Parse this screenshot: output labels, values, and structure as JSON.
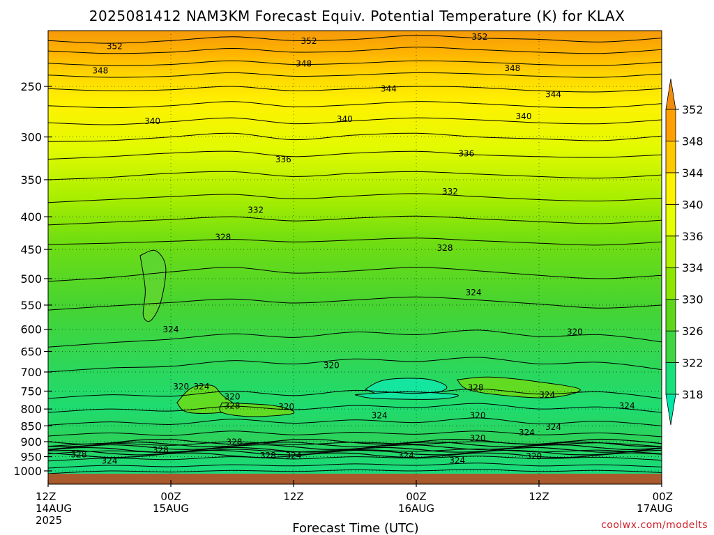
{
  "chart_data": {
    "type": "contour",
    "title": "2025081412 NAM3KM Forecast Equiv. Potential Temperature (K) for KLAX",
    "xlabel": "Forecast Time (UTC)",
    "ylabel": "",
    "credit": "coolwx.com/modelts",
    "y_scale": "log",
    "y_inverted": true,
    "ylim": [
      1030,
      200
    ],
    "y_ticks": [
      250,
      300,
      350,
      400,
      450,
      500,
      550,
      600,
      650,
      700,
      750,
      800,
      850,
      900,
      950,
      1000
    ],
    "x_hours": [
      0,
      12,
      24,
      36,
      48,
      60
    ],
    "x_ticks": [
      {
        "hour": 0,
        "lines": [
          "12Z",
          "14AUG",
          "2025"
        ]
      },
      {
        "hour": 12,
        "lines": [
          "00Z",
          "15AUG"
        ]
      },
      {
        "hour": 24,
        "lines": [
          "12Z"
        ]
      },
      {
        "hour": 36,
        "lines": [
          "00Z",
          "16AUG"
        ]
      },
      {
        "hour": 48,
        "lines": [
          "12Z"
        ]
      },
      {
        "hour": 60,
        "lines": [
          "00Z",
          "17AUG"
        ]
      }
    ],
    "grid": true,
    "ground_level_hpa": 1010,
    "colorbar": {
      "levels": [
        318,
        322,
        326,
        330,
        334,
        336,
        340,
        344,
        348,
        352
      ],
      "colors": [
        "#00e8a8",
        "#19e07a",
        "#3ed641",
        "#5ed619",
        "#8ce600",
        "#b4f000",
        "#e6ff00",
        "#fff200",
        "#ffc800",
        "#ffa000",
        "#f28c0a"
      ]
    },
    "contour_lines": [
      {
        "theta": 352,
        "pressure": [
          212,
          214,
          212,
          209,
          212,
          211,
          208,
          210,
          211,
          213,
          210
        ]
      },
      {
        "theta": 350,
        "pressure": [
          220,
          222,
          221,
          218,
          221,
          220,
          217,
          219,
          221,
          222,
          219
        ]
      },
      {
        "theta": 348,
        "pressure": [
          230,
          232,
          231,
          228,
          231,
          230,
          228,
          229,
          231,
          232,
          229
        ]
      },
      {
        "theta": 346,
        "pressure": [
          240,
          242,
          241,
          238,
          241,
          240,
          238,
          239,
          241,
          242,
          239
        ]
      },
      {
        "theta": 344,
        "pressure": [
          252,
          254,
          253,
          250,
          254,
          252,
          250,
          251,
          254,
          255,
          252
        ]
      },
      {
        "theta": 342,
        "pressure": [
          268,
          270,
          268,
          264,
          269,
          267,
          264,
          266,
          269,
          270,
          266
        ]
      },
      {
        "theta": 340,
        "pressure": [
          285,
          287,
          284,
          280,
          286,
          283,
          280,
          282,
          285,
          286,
          282
        ]
      },
      {
        "theta": 338,
        "pressure": [
          305,
          304,
          300,
          296,
          303,
          298,
          296,
          300,
          302,
          304,
          299
        ]
      },
      {
        "theta": 336,
        "pressure": [
          325,
          322,
          318,
          316,
          322,
          318,
          316,
          320,
          322,
          323,
          320
        ]
      },
      {
        "theta": 334,
        "pressure": [
          350,
          347,
          342,
          340,
          346,
          342,
          340,
          343,
          346,
          348,
          344
        ]
      },
      {
        "theta": 332,
        "pressure": [
          380,
          376,
          372,
          369,
          375,
          371,
          368,
          372,
          376,
          378,
          374
        ]
      },
      {
        "theta": 330,
        "pressure": [
          412,
          408,
          404,
          400,
          406,
          402,
          399,
          403,
          407,
          410,
          405
        ]
      },
      {
        "theta": 328,
        "pressure": [
          442,
          440,
          437,
          434,
          438,
          435,
          432,
          436,
          440,
          443,
          438
        ]
      },
      {
        "theta": 326,
        "pressure": [
          505,
          498,
          488,
          480,
          490,
          486,
          480,
          486,
          494,
          500,
          494
        ]
      },
      {
        "theta": 324,
        "pressure": [
          560,
          552,
          545,
          538,
          546,
          540,
          534,
          540,
          548,
          556,
          550
        ]
      }
    ],
    "contour_labels": [
      {
        "text": "352",
        "hour": 6.5,
        "p": 216
      },
      {
        "text": "352",
        "hour": 25.5,
        "p": 212
      },
      {
        "text": "352",
        "hour": 42.2,
        "p": 209
      },
      {
        "text": "348",
        "hour": 25.0,
        "p": 230
      },
      {
        "text": "348",
        "hour": 5.1,
        "p": 236
      },
      {
        "text": "348",
        "hour": 45.4,
        "p": 234
      },
      {
        "text": "344",
        "hour": 33.3,
        "p": 252
      },
      {
        "text": "344",
        "hour": 49.4,
        "p": 257
      },
      {
        "text": "340",
        "hour": 10.2,
        "p": 283
      },
      {
        "text": "340",
        "hour": 29.0,
        "p": 281
      },
      {
        "text": "340",
        "hour": 46.5,
        "p": 278
      },
      {
        "text": "336",
        "hour": 23.0,
        "p": 325
      },
      {
        "text": "336",
        "hour": 40.9,
        "p": 318
      },
      {
        "text": "332",
        "hour": 20.3,
        "p": 390
      },
      {
        "text": "332",
        "hour": 39.3,
        "p": 365
      },
      {
        "text": "328",
        "hour": 17.1,
        "p": 430
      },
      {
        "text": "328",
        "hour": 38.8,
        "p": 447
      },
      {
        "text": "324",
        "hour": 41.6,
        "p": 525
      },
      {
        "text": "324",
        "hour": 12.0,
        "p": 600
      },
      {
        "text": "320",
        "hour": 27.7,
        "p": 683
      },
      {
        "text": "320",
        "hour": 51.5,
        "p": 605
      },
      {
        "text": "320",
        "hour": 13.0,
        "p": 737
      },
      {
        "text": "324",
        "hour": 15.0,
        "p": 737
      },
      {
        "text": "328",
        "hour": 41.8,
        "p": 740
      },
      {
        "text": "324",
        "hour": 48.8,
        "p": 760
      },
      {
        "text": "320",
        "hour": 18.0,
        "p": 764
      },
      {
        "text": "328",
        "hour": 18.0,
        "p": 790
      },
      {
        "text": "320",
        "hour": 23.3,
        "p": 793
      },
      {
        "text": "324",
        "hour": 32.4,
        "p": 818
      },
      {
        "text": "320",
        "hour": 42.0,
        "p": 818
      },
      {
        "text": "324",
        "hour": 56.6,
        "p": 790
      },
      {
        "text": "324",
        "hour": 46.8,
        "p": 870
      },
      {
        "text": "324",
        "hour": 49.4,
        "p": 853
      },
      {
        "text": "320",
        "hour": 42.0,
        "p": 888
      },
      {
        "text": "328",
        "hour": 18.2,
        "p": 900
      },
      {
        "text": "328",
        "hour": 11.0,
        "p": 926
      },
      {
        "text": "328",
        "hour": 3.0,
        "p": 942
      },
      {
        "text": "324",
        "hour": 6.0,
        "p": 963
      },
      {
        "text": "328",
        "hour": 21.5,
        "p": 945
      },
      {
        "text": "324",
        "hour": 24.0,
        "p": 945
      },
      {
        "text": "324",
        "hour": 35.0,
        "p": 945
      },
      {
        "text": "324",
        "hour": 40.0,
        "p": 962
      },
      {
        "text": "320",
        "hour": 47.5,
        "p": 948
      }
    ]
  }
}
